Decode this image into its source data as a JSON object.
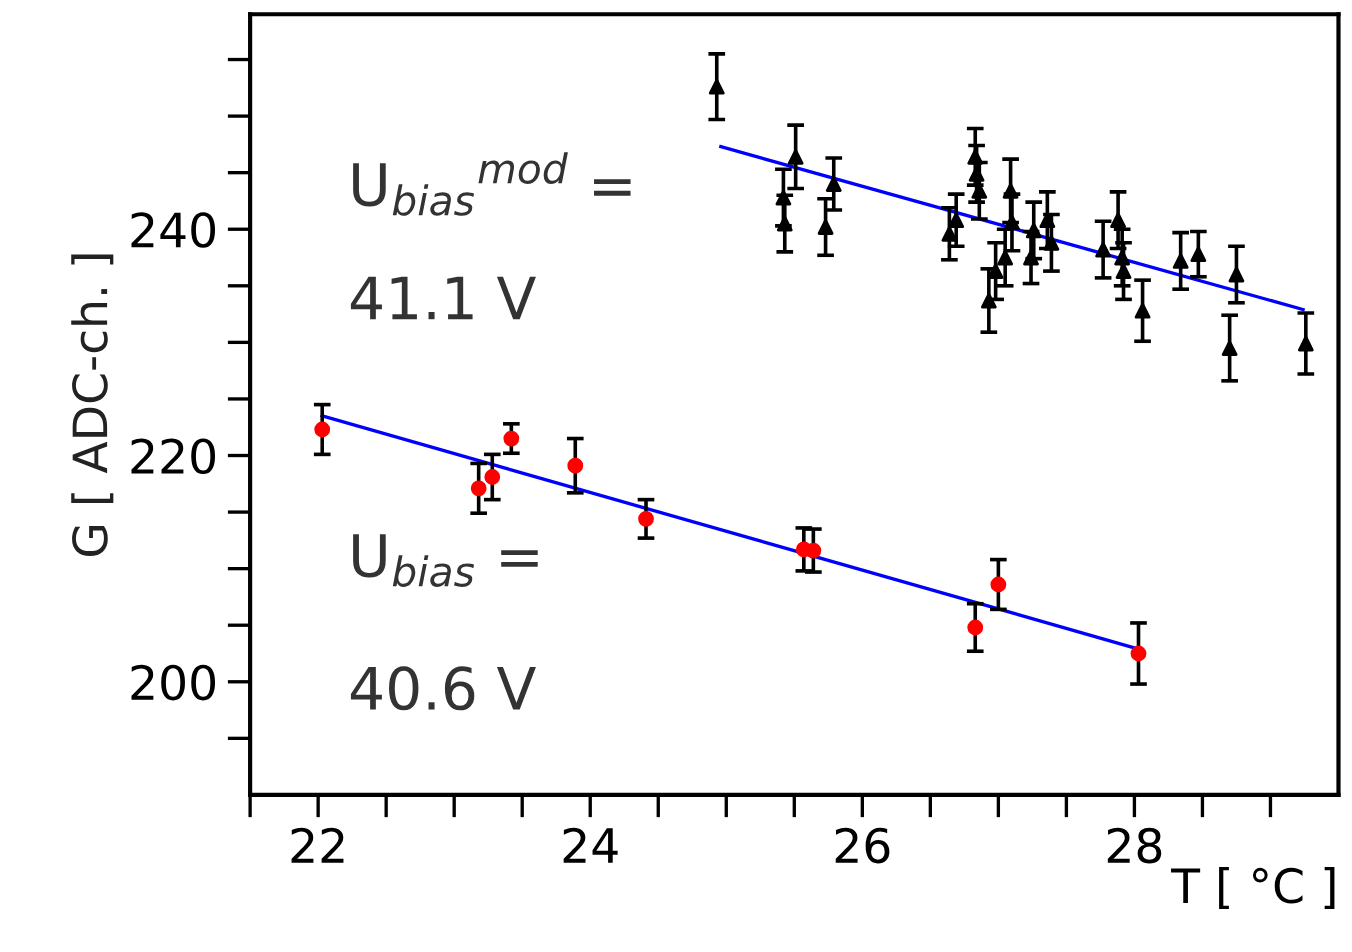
{
  "chart_data": {
    "type": "scatter",
    "xlabel": "T [ °C ]",
    "ylabel": "G [ ADC-ch. ]",
    "xlim": [
      21.5,
      29.5
    ],
    "ylim": [
      190,
      259
    ],
    "xticks": [
      {
        "value": 21.5,
        "label": null
      },
      22,
      {
        "value": 22.5,
        "label": null
      },
      {
        "value": 23,
        "label": null
      },
      {
        "value": 23.5,
        "label": null
      },
      24,
      {
        "value": 24.5,
        "label": null
      },
      {
        "value": 25,
        "label": null
      },
      {
        "value": 25.5,
        "label": null
      },
      26,
      {
        "value": 26.5,
        "label": null
      },
      {
        "value": 27,
        "label": null
      },
      {
        "value": 27.5,
        "label": null
      },
      28,
      {
        "value": 28.5,
        "label": null
      },
      {
        "value": 29,
        "label": null
      }
    ],
    "yticks": [
      {
        "value": 195,
        "label": null
      },
      200,
      {
        "value": 205,
        "label": null
      },
      {
        "value": 210,
        "label": null
      },
      {
        "value": 215,
        "label": null
      },
      220,
      {
        "value": 225,
        "label": null
      },
      {
        "value": 230,
        "label": null
      },
      {
        "value": 235,
        "label": null
      },
      240,
      {
        "value": 245,
        "label": null
      },
      {
        "value": 250,
        "label": null
      },
      {
        "value": 255,
        "label": null
      }
    ],
    "grid": false,
    "legend": false,
    "annotations": [
      "U$_{bias}$$^{mod}$ =",
      "41.1 V",
      "U$_{bias}$ =",
      "40.6 V"
    ],
    "series": [
      {
        "type": "line",
        "color": "#0000ff",
        "marker": "none",
        "x": [
          22.03,
          28.0
        ],
        "values": [
          223.5,
          203.0
        ]
      },
      {
        "type": "line",
        "color": "#0000ff",
        "marker": "none",
        "x": [
          24.96,
          29.24
        ],
        "values": [
          247.3,
          232.9
        ]
      },
      {
        "color": "#ff0000",
        "marker": "circle",
        "x": [
          22.03,
          23.18,
          23.28,
          23.42,
          23.89,
          24.41,
          25.57,
          25.64,
          26.83,
          27.0,
          28.03
        ],
        "values": [
          222.3,
          217.1,
          218.1,
          221.5,
          219.1,
          214.4,
          211.7,
          211.6,
          204.8,
          208.6,
          202.5
        ],
        "errors": [
          2.2,
          2.2,
          2.0,
          1.3,
          2.4,
          1.7,
          1.9,
          1.9,
          2.1,
          2.2,
          2.7
        ]
      },
      {
        "color": "#000000",
        "marker": "triangle",
        "x": [
          24.93,
          25.42,
          25.43,
          25.51,
          25.73,
          25.79,
          26.64,
          26.69,
          26.83,
          26.84,
          26.86,
          26.93,
          26.98,
          27.05,
          27.09,
          27.1,
          27.24,
          27.26,
          27.36,
          27.39,
          27.77,
          27.88,
          27.91,
          27.92,
          28.06,
          28.34,
          28.47,
          28.7,
          28.75,
          29.26
        ],
        "values": [
          252.6,
          242.8,
          240.5,
          246.4,
          240.2,
          244.0,
          239.6,
          240.8,
          246.4,
          244.9,
          243.4,
          233.7,
          236.3,
          237.5,
          243.4,
          240.6,
          237.5,
          239.9,
          240.8,
          238.8,
          238.2,
          240.8,
          237.5,
          236.3,
          232.8,
          237.2,
          237.8,
          229.5,
          236.0,
          229.9
        ],
        "errors": [
          2.9,
          2.5,
          2.5,
          2.8,
          2.5,
          2.3,
          2.3,
          2.3,
          2.5,
          2.5,
          2.5,
          2.8,
          2.5,
          2.5,
          2.8,
          2.5,
          2.3,
          2.5,
          2.5,
          2.5,
          2.5,
          2.5,
          2.5,
          2.5,
          2.7,
          2.5,
          2.0,
          2.9,
          2.5,
          2.7
        ]
      }
    ]
  }
}
